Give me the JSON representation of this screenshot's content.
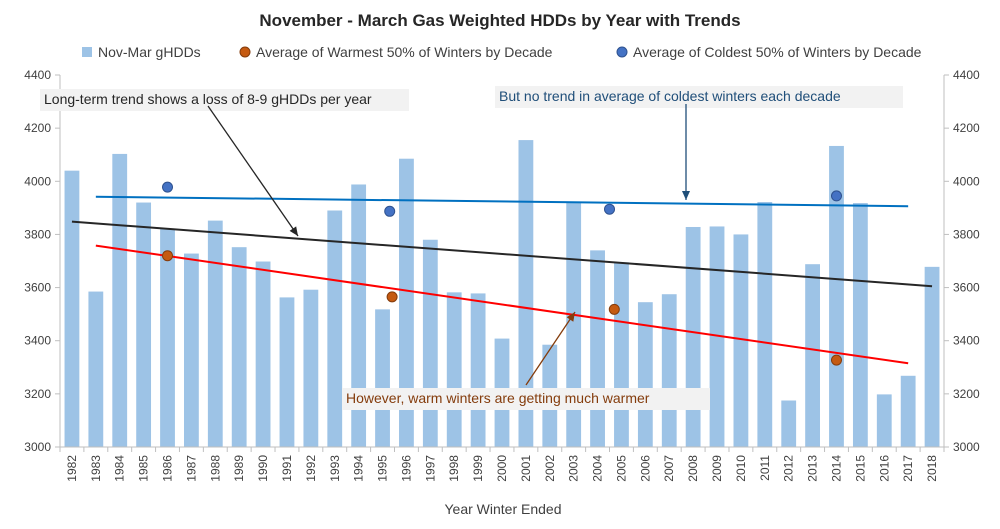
{
  "chart_data": {
    "type": "bar",
    "title": "November - March Gas Weighted HDDs by Year with Trends",
    "xlabel": "Year Winter Ended",
    "ylabel": "",
    "ylim": [
      3000,
      4400
    ],
    "yticks": [
      3000,
      3200,
      3400,
      3600,
      3800,
      4000,
      4200,
      4400
    ],
    "grid": false,
    "legend_position": "top",
    "categories": [
      "1982",
      "1983",
      "1984",
      "1985",
      "1986",
      "1987",
      "1988",
      "1989",
      "1990",
      "1991",
      "1992",
      "1993",
      "1994",
      "1995",
      "1996",
      "1997",
      "1998",
      "1999",
      "2000",
      "2001",
      "2002",
      "2003",
      "2004",
      "2005",
      "2006",
      "2007",
      "2008",
      "2009",
      "2010",
      "2011",
      "2012",
      "2013",
      "2014",
      "2015",
      "2016",
      "2017",
      "2018"
    ],
    "series": [
      {
        "name": "Nov-Mar gHDDs",
        "kind": "bar",
        "color": "#9dc3e6",
        "values": [
          4040,
          3585,
          4103,
          3920,
          3822,
          3728,
          3852,
          3752,
          3698,
          3563,
          3592,
          3890,
          3988,
          3518,
          4085,
          3780,
          3582,
          3578,
          3408,
          4155,
          3385,
          3922,
          3740,
          3695,
          3545,
          3575,
          3828,
          3830,
          3800,
          3922,
          3175,
          3688,
          4133,
          3918,
          3198,
          3268,
          3678
        ]
      },
      {
        "name": "Average of Warmest 50% of Winters by Decade",
        "kind": "scatter",
        "color": "#c55a11",
        "points": [
          {
            "x": 1986.0,
            "y": 3720
          },
          {
            "x": 1995.4,
            "y": 3565
          },
          {
            "x": 2004.7,
            "y": 3518
          },
          {
            "x": 2014.0,
            "y": 3327
          }
        ]
      },
      {
        "name": "Average of Coldest 50% of Winters by Decade",
        "kind": "scatter",
        "color": "#4472c4",
        "points": [
          {
            "x": 1986.0,
            "y": 3978
          },
          {
            "x": 1995.3,
            "y": 3887
          },
          {
            "x": 2004.5,
            "y": 3895
          },
          {
            "x": 2014.0,
            "y": 3945
          }
        ]
      }
    ],
    "trendlines": [
      {
        "id": "all",
        "color": "#262626",
        "x": [
          1982,
          2018
        ],
        "y": [
          3848,
          3605
        ]
      },
      {
        "id": "coldest",
        "color": "#0070c0",
        "x": [
          1983,
          2017
        ],
        "y": [
          3942,
          3906
        ]
      },
      {
        "id": "warmest",
        "color": "#ff0000",
        "x": [
          1983,
          2017
        ],
        "y": [
          3758,
          3315
        ]
      }
    ],
    "annotations": [
      {
        "id": "long-term",
        "text": "Long-term trend shows a loss of 8-9 gHDDs per year",
        "color": "#262626",
        "box_fill": "#f2f2f2"
      },
      {
        "id": "no-trend",
        "text": "But no trend in average of coldest winters each decade",
        "color": "#1f4e79",
        "box_fill": "#f2f2f2"
      },
      {
        "id": "warm-warmer",
        "text": "However, warm winters are getting much warmer",
        "color": "#843c0c",
        "box_fill": "#f2f2f2"
      }
    ]
  }
}
